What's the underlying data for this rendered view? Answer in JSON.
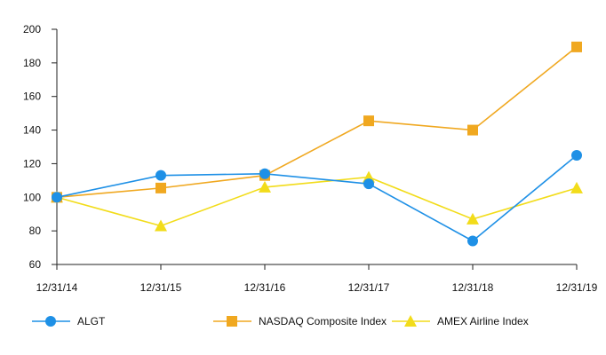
{
  "chart_data": {
    "type": "line",
    "categories": [
      "12/31/14",
      "12/31/15",
      "12/31/16",
      "12/31/17",
      "12/31/18",
      "12/31/19"
    ],
    "ylim": [
      60,
      200
    ],
    "yticks": [
      60,
      80,
      100,
      120,
      140,
      160,
      180,
      200
    ],
    "grid": false,
    "legend_position": "bottom",
    "series": [
      {
        "name": "ALGT",
        "values": [
          100,
          113,
          114,
          108,
          74,
          125
        ],
        "color": "#1E90E6",
        "marker": "circle"
      },
      {
        "name": "NASDAQ Composite Index",
        "values": [
          100,
          105.5,
          113,
          145.5,
          140,
          189.5
        ],
        "color": "#F0A820",
        "marker": "square"
      },
      {
        "name": "AMEX Airline Index",
        "values": [
          100,
          83,
          106,
          112,
          87,
          105.5
        ],
        "color": "#F2DC1A",
        "marker": "triangle"
      }
    ]
  }
}
